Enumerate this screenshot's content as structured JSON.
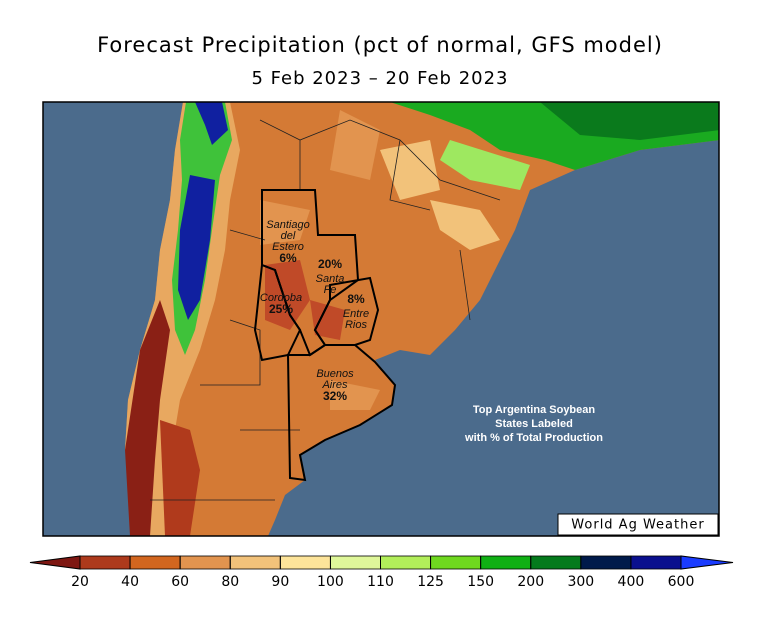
{
  "header": {
    "title": "Forecast Precipitation (pct of normal, GFS model)",
    "subtitle": "5 Feb 2023 – 20 Feb 2023"
  },
  "states": [
    {
      "name": [
        "Santiago",
        "del",
        "Estero"
      ],
      "share": "6%"
    },
    {
      "name": [
        "Santa",
        "Fe"
      ],
      "share": "20%"
    },
    {
      "name": [
        "Cordoba"
      ],
      "share": "25%"
    },
    {
      "name": [
        "Entre",
        "Rios"
      ],
      "share": "8%"
    },
    {
      "name": [
        "Buenos",
        "Aires"
      ],
      "share": "32%"
    }
  ],
  "note": [
    "Top Argentina Soybean",
    "States Labeled",
    "with % of Total Production"
  ],
  "credit": "World Ag Weather",
  "legend": {
    "ticks": [
      20,
      40,
      60,
      80,
      90,
      100,
      110,
      125,
      150,
      200,
      300,
      400,
      600
    ],
    "colors": [
      "#7e1712",
      "#ad3a1c",
      "#d2661f",
      "#e2944f",
      "#f2c27a",
      "#fde49a",
      "#dff79a",
      "#b2ee5a",
      "#6fd81f",
      "#10b014",
      "#047a1c",
      "#001a4a",
      "#0a108e",
      "#1a3cff"
    ]
  }
}
